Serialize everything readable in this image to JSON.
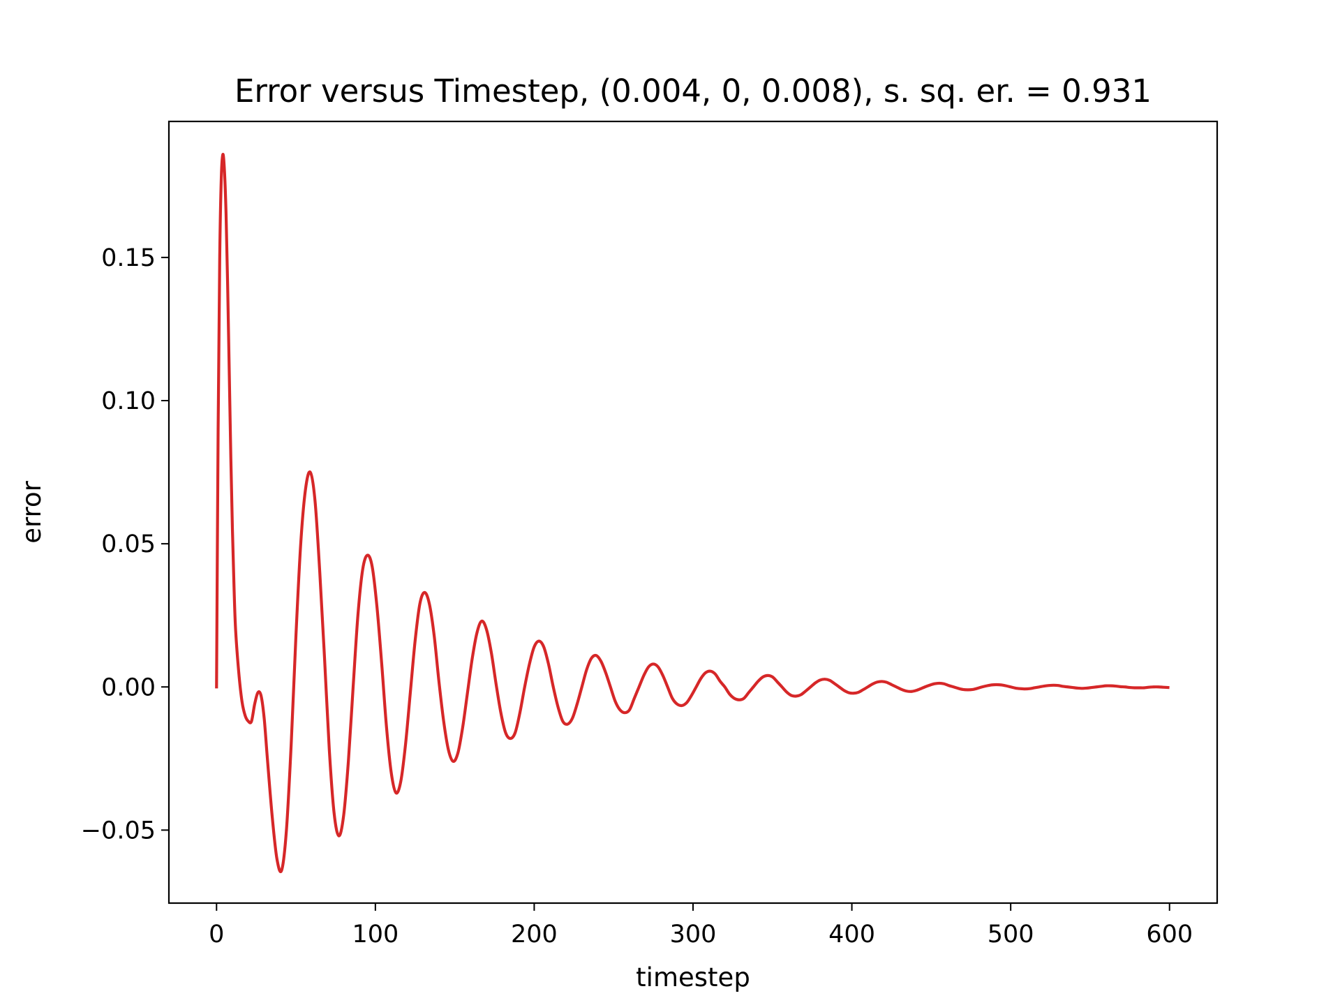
{
  "chart_data": {
    "type": "line",
    "title": "Error versus Timestep, (0.004, 0, 0.008), s. sq. er. = 0.931",
    "xlabel": "timestep",
    "ylabel": "error",
    "xlim": [
      -30,
      630
    ],
    "ylim": [
      -0.0755,
      0.1975
    ],
    "xticks": [
      0,
      100,
      200,
      300,
      400,
      500,
      600
    ],
    "xtick_labels": [
      "0",
      "100",
      "200",
      "300",
      "400",
      "500",
      "600"
    ],
    "yticks": [
      -0.05,
      0.0,
      0.05,
      0.1,
      0.15
    ],
    "ytick_labels": [
      "−0.05",
      "0.00",
      "0.05",
      "0.10",
      "0.15"
    ],
    "grid": false,
    "legend": "none",
    "series": [
      {
        "color": "#d62728",
        "x": [
          0,
          1,
          2,
          3,
          4,
          5,
          6,
          7,
          8,
          9,
          10,
          11,
          12,
          14,
          16,
          18,
          20,
          22,
          24,
          26,
          28,
          30,
          32,
          35,
          38,
          41,
          44,
          47,
          50,
          53,
          56,
          59,
          62,
          65,
          68,
          71,
          74,
          77,
          80,
          83,
          86,
          89,
          92,
          95,
          98,
          101,
          104,
          107,
          110,
          113,
          116,
          119,
          122,
          125,
          128,
          131,
          134,
          137,
          140,
          143,
          146,
          149,
          152,
          155,
          158,
          161,
          164,
          167,
          170,
          173,
          176,
          179,
          182,
          185,
          188,
          191,
          194,
          197,
          200,
          203,
          206,
          209,
          212,
          215,
          218,
          221,
          224,
          227,
          230,
          233,
          236,
          239,
          242,
          245,
          248,
          251,
          254,
          257,
          260,
          263,
          266,
          269,
          272,
          275,
          278,
          281,
          284,
          287,
          290,
          293,
          296,
          299,
          302,
          305,
          308,
          311,
          314,
          317,
          320,
          323,
          326,
          329,
          332,
          335,
          338,
          341,
          344,
          347,
          350,
          353,
          356,
          359,
          362,
          365,
          368,
          371,
          374,
          377,
          380,
          383,
          386,
          389,
          392,
          395,
          398,
          401,
          404,
          407,
          410,
          413,
          416,
          419,
          422,
          425,
          428,
          431,
          434,
          437,
          440,
          443,
          446,
          449,
          452,
          455,
          458,
          461,
          464,
          467,
          470,
          473,
          476,
          479,
          482,
          485,
          488,
          491,
          494,
          497,
          500,
          503,
          506,
          509,
          512,
          515,
          518,
          521,
          524,
          527,
          530,
          533,
          536,
          539,
          542,
          545,
          548,
          551,
          554,
          557,
          560,
          563,
          566,
          569,
          572,
          575,
          578,
          581,
          584,
          587,
          590,
          593,
          596,
          599
        ],
        "y": [
          0.0,
          0.09,
          0.15,
          0.178,
          0.186,
          0.18,
          0.165,
          0.14,
          0.11,
          0.08,
          0.055,
          0.035,
          0.02,
          0.005,
          -0.005,
          -0.01,
          -0.012,
          -0.012,
          -0.006,
          -0.002,
          -0.003,
          -0.011,
          -0.025,
          -0.045,
          -0.06,
          -0.064,
          -0.05,
          -0.02,
          0.018,
          0.05,
          0.069,
          0.075,
          0.065,
          0.04,
          0.01,
          -0.022,
          -0.044,
          -0.052,
          -0.045,
          -0.026,
          0.0,
          0.025,
          0.041,
          0.046,
          0.042,
          0.028,
          0.008,
          -0.014,
          -0.03,
          -0.037,
          -0.033,
          -0.02,
          -0.002,
          0.016,
          0.029,
          0.033,
          0.029,
          0.018,
          0.002,
          -0.012,
          -0.022,
          -0.026,
          -0.023,
          -0.014,
          -0.002,
          0.01,
          0.019,
          0.023,
          0.02,
          0.012,
          0.001,
          -0.009,
          -0.016,
          -0.018,
          -0.016,
          -0.009,
          0.0,
          0.008,
          0.014,
          0.016,
          0.014,
          0.008,
          0.0,
          -0.007,
          -0.012,
          -0.013,
          -0.011,
          -0.006,
          0.0,
          0.006,
          0.01,
          0.011,
          0.009,
          0.005,
          0.0,
          -0.005,
          -0.008,
          -0.009,
          -0.008,
          -0.004,
          0.0,
          0.004,
          0.007,
          0.008,
          0.007,
          0.004,
          0.0,
          -0.004,
          -0.006,
          -0.0065,
          -0.0055,
          -0.003,
          0.0,
          0.003,
          0.005,
          0.0055,
          0.0045,
          0.002,
          0.0,
          -0.0025,
          -0.004,
          -0.0045,
          -0.004,
          -0.002,
          0.0,
          0.002,
          0.0035,
          0.004,
          0.0035,
          0.0018,
          0.0,
          -0.0018,
          -0.003,
          -0.0032,
          -0.0027,
          -0.0014,
          0.0,
          0.0014,
          0.0024,
          0.0027,
          0.0023,
          0.0012,
          0.0,
          -0.0012,
          -0.002,
          -0.0022,
          -0.0019,
          -0.001,
          0.0,
          0.001,
          0.0017,
          0.0019,
          0.0016,
          0.0008,
          0.0,
          -0.0008,
          -0.0014,
          -0.0016,
          -0.0013,
          -0.0007,
          0.0,
          0.0006,
          0.0011,
          0.0013,
          0.0011,
          0.0005,
          0.0,
          -0.0005,
          -0.0009,
          -0.001,
          -0.0009,
          -0.0005,
          0.0,
          0.0004,
          0.0007,
          0.0008,
          0.0007,
          0.0004,
          0.0,
          -0.0004,
          -0.0006,
          -0.0007,
          -0.0006,
          -0.0003,
          0.0,
          0.0003,
          0.0005,
          0.0006,
          0.0005,
          0.0002,
          0.0,
          -0.0002,
          -0.0004,
          -0.0005,
          -0.0004,
          -0.0002,
          0.0,
          0.0002,
          0.0004,
          0.0004,
          0.0003,
          0.0001,
          0.0,
          -0.0002,
          -0.0003,
          -0.0003,
          -0.0003,
          -0.0001,
          0.0,
          0.0,
          -0.0001,
          -0.0002
        ]
      }
    ]
  }
}
